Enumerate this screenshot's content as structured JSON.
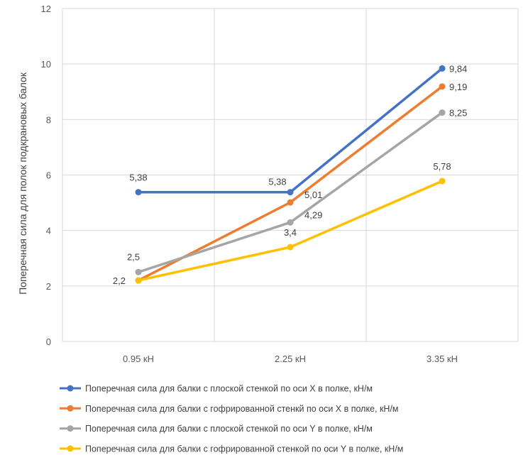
{
  "chart_data": {
    "type": "line",
    "ylabel": "Поперечная сила для полок подкрановых балок",
    "xlabel": "",
    "categories": [
      "0.95 кН",
      "2.25 кН",
      "3.35 кН"
    ],
    "ylim": [
      0,
      12
    ],
    "yticks": [
      0,
      2,
      4,
      6,
      8,
      10,
      12
    ],
    "grid": true,
    "legend_position": "bottom",
    "series": [
      {
        "name": "Поперечная сила для балки с плоской стенкой по оси X в полке, кН/м",
        "color": "#4472c4",
        "values": [
          5.38,
          5.38,
          9.84
        ],
        "labels": [
          "5,38",
          "5,38",
          "9,84"
        ]
      },
      {
        "name": "Поперечная сила для балки с гофрированной стенкй по оси X в полке, кН/м",
        "color": "#ed7d31",
        "values": [
          2.2,
          5.01,
          9.19
        ],
        "labels": [
          "2,2",
          "5,01",
          "9,19"
        ]
      },
      {
        "name": "Поперечная сила для балки с плоской стенкой по оси Y в полке, кН/м",
        "color": "#a5a5a5",
        "values": [
          2.5,
          4.29,
          8.25
        ],
        "labels": [
          "2,5",
          "4,29",
          "8,25"
        ]
      },
      {
        "name": "Поперечная сила для балки с гофрированной стенкой по оси Y в полке, кН/м",
        "color": "#ffc000",
        "values": [
          2.2,
          3.4,
          5.78
        ],
        "labels": [
          "",
          "3,4",
          "5,78"
        ]
      }
    ]
  }
}
